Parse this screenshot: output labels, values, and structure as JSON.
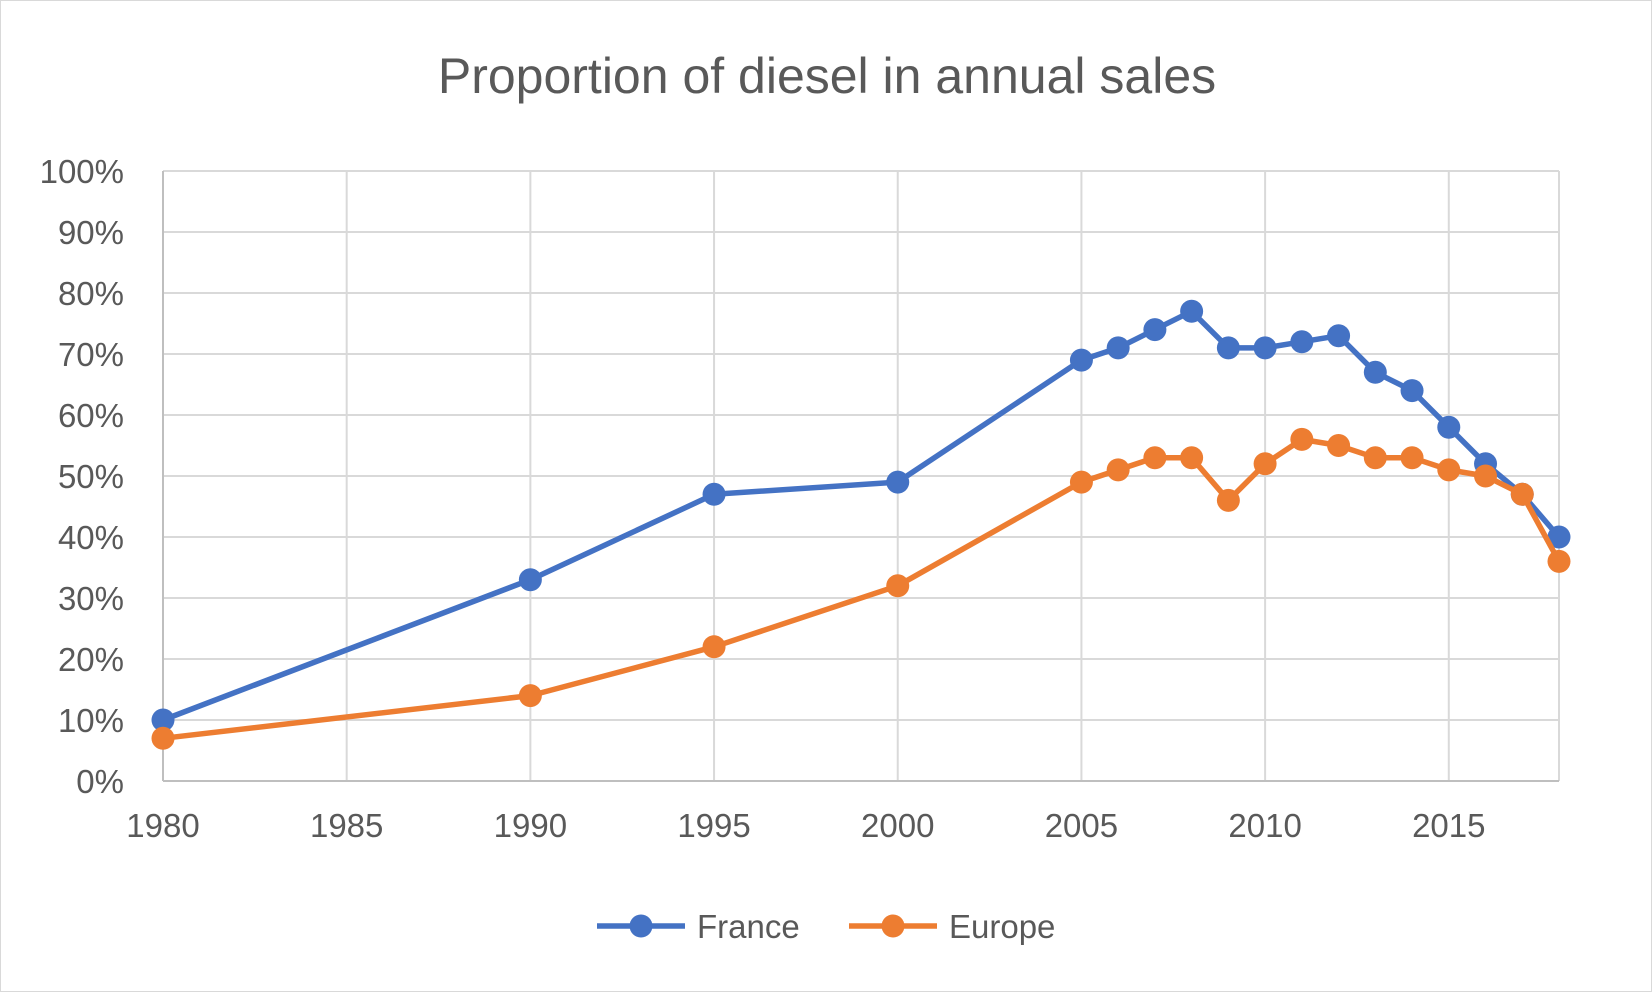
{
  "chart_data": {
    "type": "line",
    "title": "Proportion of diesel in annual sales",
    "xlabel": "",
    "ylabel": "",
    "x_ticks": [
      1980,
      1985,
      1990,
      1995,
      2000,
      2005,
      2010,
      2015
    ],
    "y_ticks": [
      "0%",
      "10%",
      "20%",
      "30%",
      "40%",
      "50%",
      "60%",
      "70%",
      "80%",
      "90%",
      "100%"
    ],
    "xlim": [
      1980,
      2018
    ],
    "ylim": [
      0,
      100
    ],
    "grid": true,
    "legend_position": "bottom",
    "x": [
      1980,
      1990,
      1995,
      2000,
      2005,
      2006,
      2007,
      2008,
      2009,
      2010,
      2011,
      2012,
      2013,
      2014,
      2015,
      2016,
      2017,
      2018
    ],
    "series": [
      {
        "name": "France",
        "color": "#4472c4",
        "values": [
          10,
          33,
          47,
          49,
          69,
          71,
          74,
          77,
          71,
          71,
          72,
          73,
          67,
          64,
          58,
          52,
          47,
          40
        ]
      },
      {
        "name": "Europe",
        "color": "#ed7d31",
        "values": [
          7,
          14,
          22,
          32,
          49,
          51,
          53,
          53,
          46,
          52,
          56,
          55,
          53,
          53,
          51,
          50,
          47,
          36
        ]
      }
    ]
  }
}
